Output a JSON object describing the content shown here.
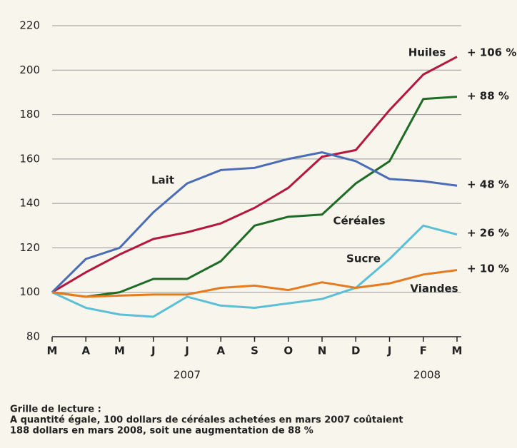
{
  "chart_data": {
    "type": "line",
    "categories": [
      "M",
      "A",
      "M",
      "J",
      "J",
      "A",
      "S",
      "O",
      "N",
      "D",
      "J",
      "F",
      "M"
    ],
    "year_labels": [
      "2007",
      "2008"
    ],
    "ylim": [
      80,
      220
    ],
    "yticks": [
      80,
      100,
      120,
      140,
      160,
      180,
      200,
      220
    ],
    "grid": true,
    "series": [
      {
        "name": "Huiles",
        "color": "#b5173d",
        "end_label": "+ 106 %",
        "values": [
          100,
          109,
          117,
          124,
          127,
          131,
          138,
          147,
          161,
          164,
          182,
          198,
          206
        ]
      },
      {
        "name": "Céréales",
        "color": "#1e6b25",
        "end_label": "+ 88 %",
        "values": [
          100,
          98,
          100,
          106,
          106,
          114,
          130,
          134,
          135,
          149,
          159,
          187,
          188
        ]
      },
      {
        "name": "Lait",
        "color": "#4a6db5",
        "end_label": "+ 48 %",
        "values": [
          100,
          115,
          120,
          136,
          149,
          155,
          156,
          160,
          163,
          159,
          151,
          150,
          148
        ]
      },
      {
        "name": "Sucre",
        "color": "#5bbfd6",
        "end_label": "+ 26 %",
        "values": [
          100,
          93,
          90,
          89,
          98,
          94,
          93,
          95,
          97,
          102,
          115,
          130,
          126
        ]
      },
      {
        "name": "Viandes",
        "color": "#e87a1e",
        "end_label": "+ 10 %",
        "values": [
          100,
          98,
          98.5,
          99,
          99,
          102,
          103,
          101,
          104.5,
          102,
          104,
          108,
          110
        ]
      }
    ],
    "notes": [
      "Grille de lecture :",
      "A quantité égale, 100 dollars de céréales achetées en mars 2007 coûtaient",
      "188 dollars en mars 2008, soit une augmentation de 88 %"
    ]
  }
}
